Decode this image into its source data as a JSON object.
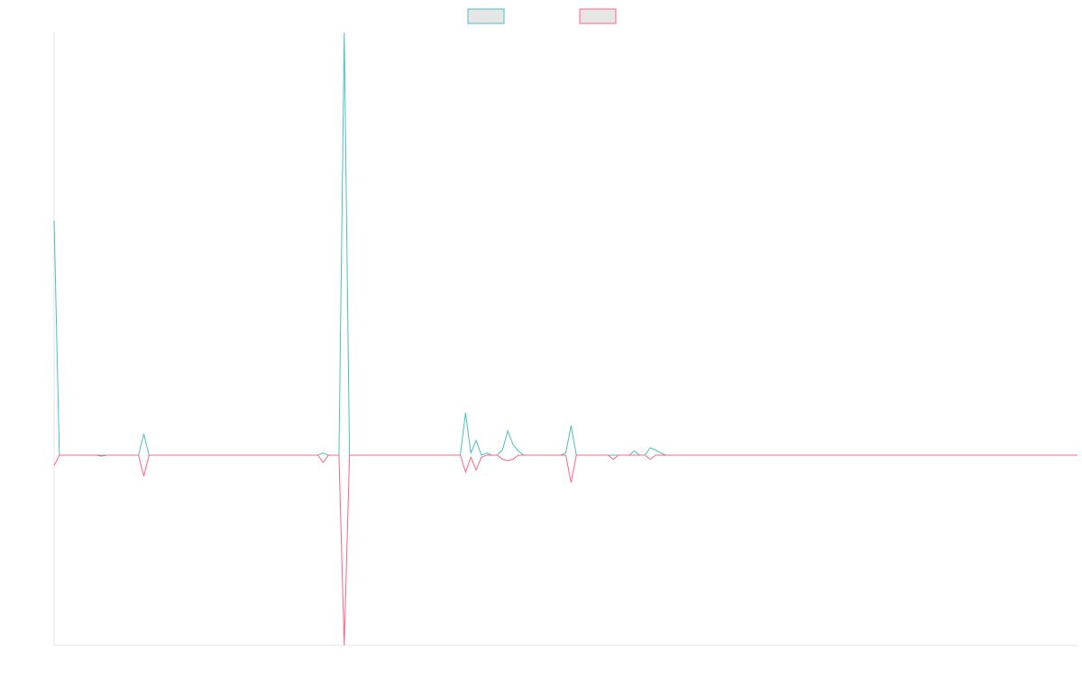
{
  "chart_data": {
    "type": "line",
    "ylim": [
      -9,
      20
    ],
    "legend": "top",
    "legend_fill": "#e6e6e6",
    "series": [
      {
        "color": "#4bc0c0",
        "values": [
          11.1,
          0,
          0,
          0,
          0,
          0,
          0,
          0,
          0,
          0,
          0,
          0,
          0,
          0,
          0,
          0,
          0,
          1.0,
          0,
          0,
          0,
          0,
          0,
          0,
          0,
          0,
          0,
          0,
          0,
          0,
          0,
          0,
          0,
          0,
          0,
          0,
          0,
          0,
          0,
          0,
          0,
          0,
          0,
          0,
          0,
          0,
          0,
          0,
          0,
          0,
          0,
          0.1,
          0,
          0,
          0,
          20,
          0,
          0,
          0,
          0,
          0,
          0,
          0,
          0,
          0,
          0,
          0,
          0,
          0,
          0,
          0,
          0,
          0,
          0,
          0,
          0,
          0,
          0,
          2.0,
          0.1,
          0.7,
          0,
          0.1,
          0,
          0,
          0.25,
          1.15,
          0.5,
          0.2,
          0,
          0,
          0,
          0,
          0,
          0,
          0,
          0,
          0.1,
          1.4,
          0,
          0,
          0,
          0,
          0,
          0,
          0,
          0,
          0,
          0,
          0,
          0.2,
          0,
          0,
          0.35,
          0.25,
          0.1,
          0,
          0,
          0,
          0,
          0,
          0,
          0,
          0,
          0,
          0,
          0,
          0,
          0,
          0,
          0,
          0,
          0,
          0,
          0,
          0,
          0,
          0,
          0,
          0,
          0,
          0,
          0,
          0,
          0,
          0,
          0,
          0,
          0,
          0,
          0,
          0,
          0,
          0,
          0,
          0,
          0,
          0,
          0,
          0,
          0,
          0,
          0,
          0,
          0,
          0,
          0,
          0,
          0,
          0,
          0,
          0,
          0,
          0,
          0,
          0,
          0,
          0,
          0,
          0,
          0,
          0,
          0,
          0,
          0,
          0,
          0,
          0,
          0,
          0,
          0,
          0,
          0,
          0,
          0
        ]
      },
      {
        "color": "#ff6384",
        "values": [
          -0.5,
          0,
          0,
          0,
          0,
          0,
          0,
          0,
          0,
          -0.05,
          0,
          0,
          0,
          0,
          0,
          0,
          0,
          -1.0,
          0,
          0,
          0,
          0,
          0,
          0,
          0,
          0,
          0,
          0,
          0,
          0,
          0,
          0,
          0,
          0,
          0,
          0,
          0,
          0,
          0,
          0,
          0,
          0,
          0,
          0,
          0,
          0,
          0,
          0,
          0,
          0,
          0,
          -0.35,
          0,
          0,
          0,
          -9,
          0,
          0,
          0,
          0,
          0,
          0,
          0,
          0,
          0,
          0,
          0,
          0,
          0,
          0,
          0,
          0,
          0,
          0,
          0,
          0,
          0,
          0,
          -0.8,
          -0.1,
          -0.7,
          -0.1,
          0,
          0,
          0,
          -0.2,
          -0.25,
          -0.2,
          0,
          0,
          0,
          0,
          0,
          0,
          0,
          0,
          0,
          0,
          -1.3,
          0,
          0,
          0,
          0,
          0,
          0,
          0,
          -0.2,
          0,
          0,
          0,
          0,
          0,
          0,
          -0.2,
          0,
          0,
          0,
          0,
          0,
          0,
          0,
          0,
          0,
          0,
          0,
          0,
          0,
          0,
          0,
          0,
          0,
          0,
          0,
          0,
          0,
          0,
          0,
          0,
          0,
          0,
          0,
          0,
          0,
          0,
          0,
          0,
          0,
          0,
          0,
          0,
          0,
          0,
          0,
          0,
          0,
          0,
          0,
          0,
          0,
          0,
          0,
          0,
          0,
          0,
          0,
          0,
          0,
          0,
          0,
          0,
          0,
          0,
          0,
          0,
          0,
          0,
          0,
          0,
          0,
          0,
          0,
          0,
          0,
          0,
          0,
          0,
          0,
          0,
          0,
          0,
          0,
          0,
          0,
          0,
          0
        ]
      }
    ]
  }
}
